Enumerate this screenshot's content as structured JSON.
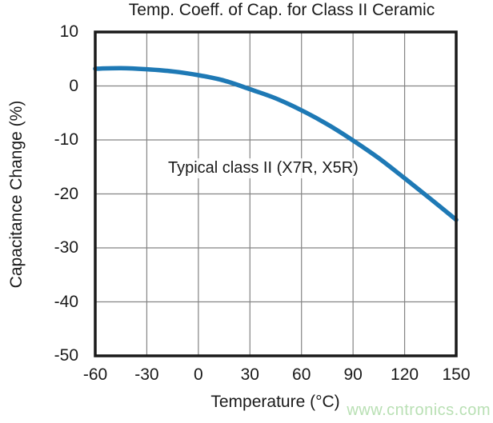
{
  "chart_data": {
    "type": "line",
    "title": "Temp. Coeff. of Cap. for Class II Ceramic",
    "xlabel": "Temperature (°C)",
    "ylabel": "Capacitance Change (%)",
    "xlim": [
      -60,
      150
    ],
    "ylim": [
      -50,
      10
    ],
    "x_ticks": [
      -60,
      -30,
      0,
      30,
      60,
      90,
      120,
      150
    ],
    "y_ticks": [
      10,
      0,
      -10,
      -20,
      -30,
      -40,
      -50
    ],
    "grid": true,
    "legend": "none",
    "annotation": "Typical class II (X7R, X5R)",
    "series": [
      {
        "name": "Typical class II (X7R, X5R)",
        "x": [
          -60,
          -45,
          -30,
          -15,
          0,
          15,
          30,
          45,
          60,
          75,
          90,
          105,
          120,
          135,
          150
        ],
        "y": [
          3.2,
          3.3,
          3.1,
          2.7,
          2.0,
          1.0,
          -0.6,
          -2.3,
          -4.5,
          -7.1,
          -10.1,
          -13.4,
          -17.1,
          -20.9,
          -24.8
        ]
      }
    ],
    "colors": {
      "line": "#1e79b5",
      "grid": "#848484",
      "axis_frame": "#1a1a1a",
      "text": "#1a1a1a",
      "watermark": "#b9e0b4",
      "background": "#ffffff"
    },
    "watermark": "www.cntronics.com"
  }
}
